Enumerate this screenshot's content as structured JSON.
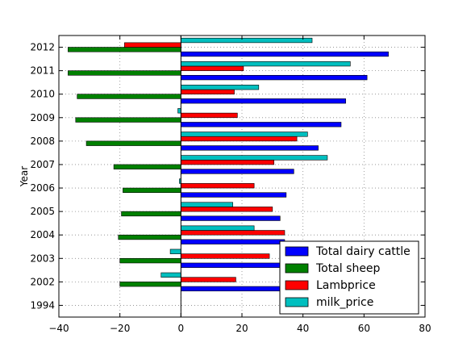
{
  "chart_data": {
    "type": "bar",
    "orientation": "horizontal",
    "ylabel": "Year",
    "xlabel": "",
    "xlim": [
      -40,
      80
    ],
    "xticks": [
      -40,
      -20,
      0,
      20,
      40,
      60,
      80
    ],
    "grid": true,
    "legend_position": "lower-right",
    "categories": [
      "1994",
      "2002",
      "2003",
      "2004",
      "2005",
      "2006",
      "2007",
      "2008",
      "2009",
      "2010",
      "2011",
      "2012"
    ],
    "series": [
      {
        "name": "Total dairy cattle",
        "color": "#0000ff",
        "values": [
          0,
          35,
          35,
          34,
          32.5,
          34.5,
          37,
          45,
          52.5,
          54,
          61,
          68
        ]
      },
      {
        "name": "Total sheep",
        "color": "#008000",
        "values": [
          0,
          -20,
          -20,
          -20.5,
          -19.5,
          -19,
          -22,
          -31,
          -34.5,
          -34,
          -37,
          -37
        ]
      },
      {
        "name": "Lambprice",
        "color": "#ff0000",
        "values": [
          0,
          18,
          29,
          34,
          30,
          24,
          30.5,
          38,
          18.5,
          17.5,
          20.5,
          -18.5
        ]
      },
      {
        "name": "milk_price",
        "color": "#00bfbf",
        "values": [
          0,
          -6.5,
          -3.5,
          24,
          17,
          -0.5,
          48,
          41.5,
          -1,
          25.5,
          55.5,
          43
        ]
      }
    ]
  }
}
